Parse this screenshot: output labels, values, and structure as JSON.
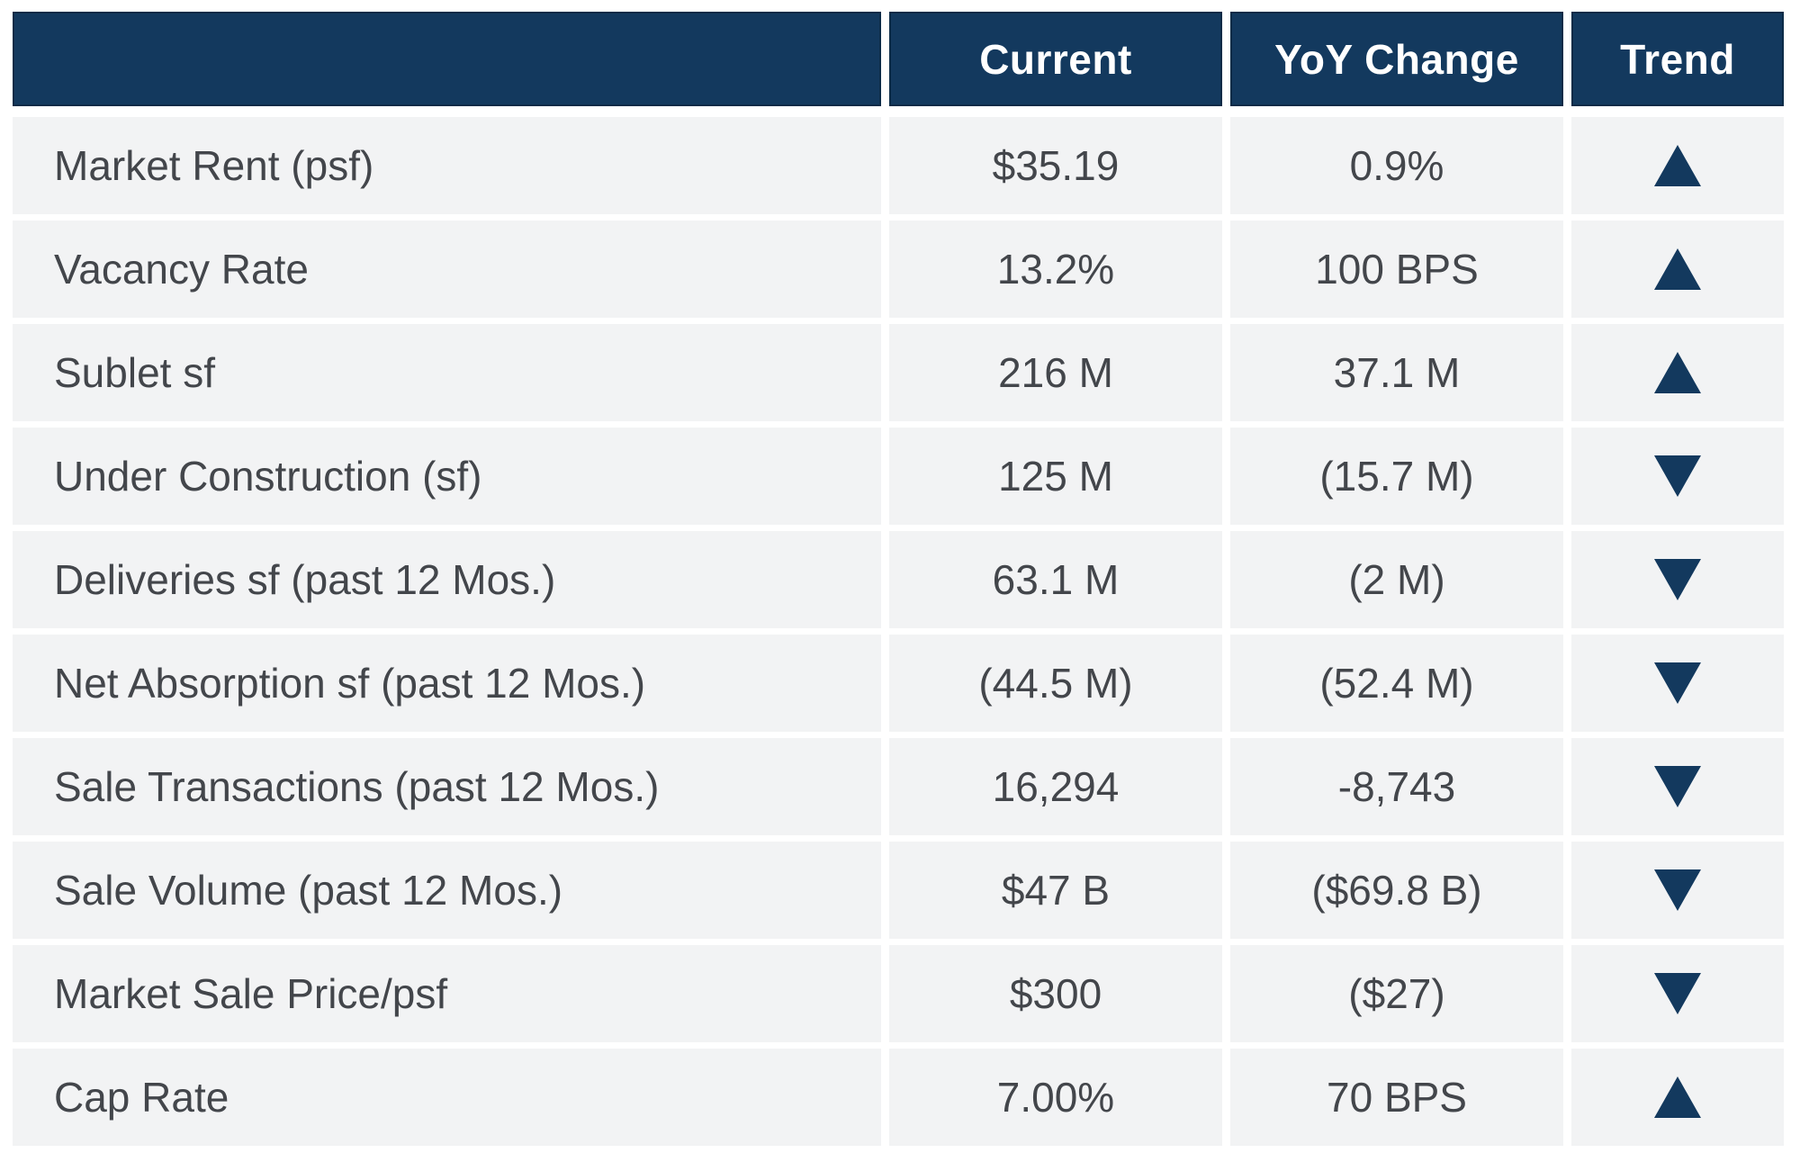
{
  "colors": {
    "navy": "#13395E",
    "navy_border": "#0C2B47",
    "row_bg": "#F2F3F4",
    "body_text": "#43464B",
    "header_text": "#FFFFFF",
    "page_bg": "#FFFFFF"
  },
  "chart_data": {
    "type": "table",
    "title": "",
    "columns": {
      "label": "",
      "current": "Current",
      "yoy": "YoY Change",
      "trend": "Trend"
    },
    "rows": [
      {
        "label": "Market Rent (psf)",
        "current": "$35.19",
        "yoy": "0.9%",
        "trend": "up"
      },
      {
        "label": "Vacancy Rate",
        "current": "13.2%",
        "yoy": "100 BPS",
        "trend": "up"
      },
      {
        "label": "Sublet sf",
        "current": "216 M",
        "yoy": "37.1 M",
        "trend": "up"
      },
      {
        "label": "Under Construction (sf)",
        "current": "125 M",
        "yoy": "(15.7 M)",
        "trend": "down"
      },
      {
        "label": "Deliveries sf (past 12 Mos.)",
        "current": "63.1 M",
        "yoy": "(2 M)",
        "trend": "down"
      },
      {
        "label": "Net Absorption sf (past 12 Mos.)",
        "current": "(44.5 M)",
        "yoy": "(52.4 M)",
        "trend": "down"
      },
      {
        "label": "Sale Transactions (past 12 Mos.)",
        "current": "16,294",
        "yoy": "-8,743",
        "trend": "down"
      },
      {
        "label": "Sale Volume (past 12 Mos.)",
        "current": "$47 B",
        "yoy": "($69.8 B)",
        "trend": "down"
      },
      {
        "label": "Market Sale Price/psf",
        "current": "$300",
        "yoy": "($27)",
        "trend": "down"
      },
      {
        "label": "Cap Rate",
        "current": "7.00%",
        "yoy": "70 BPS",
        "trend": "up"
      }
    ]
  }
}
